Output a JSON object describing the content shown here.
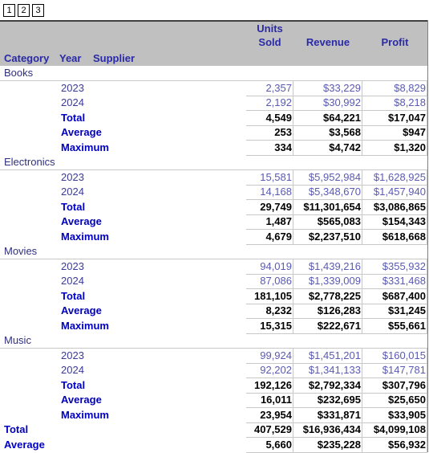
{
  "pager": {
    "buttons": [
      "1",
      "2",
      "3"
    ]
  },
  "table": {
    "header": {
      "units": [
        "Units",
        "Sold"
      ],
      "revenue": "Revenue",
      "profit": "Profit",
      "dims": [
        "Category",
        "Year",
        "Supplier"
      ]
    },
    "groups": [
      {
        "name": "Books",
        "years": [
          [
            "2023",
            "2,357",
            "$33,229",
            "$8,829"
          ],
          [
            "2024",
            "2,192",
            "$30,992",
            "$8,218"
          ]
        ],
        "summary": [
          [
            "Total",
            "4,549",
            "$64,221",
            "$17,047"
          ],
          [
            "Average",
            "253",
            "$3,568",
            "$947"
          ],
          [
            "Maximum",
            "334",
            "$4,742",
            "$1,320"
          ]
        ]
      },
      {
        "name": "Electronics",
        "years": [
          [
            "2023",
            "15,581",
            "$5,952,984",
            "$1,628,925"
          ],
          [
            "2024",
            "14,168",
            "$5,348,670",
            "$1,457,940"
          ]
        ],
        "summary": [
          [
            "Total",
            "29,749",
            "$11,301,654",
            "$3,086,865"
          ],
          [
            "Average",
            "1,487",
            "$565,083",
            "$154,343"
          ],
          [
            "Maximum",
            "4,679",
            "$2,237,510",
            "$618,668"
          ]
        ]
      },
      {
        "name": "Movies",
        "years": [
          [
            "2023",
            "94,019",
            "$1,439,216",
            "$355,932"
          ],
          [
            "2024",
            "87,086",
            "$1,339,009",
            "$331,468"
          ]
        ],
        "summary": [
          [
            "Total",
            "181,105",
            "$2,778,225",
            "$687,400"
          ],
          [
            "Average",
            "8,232",
            "$126,283",
            "$31,245"
          ],
          [
            "Maximum",
            "15,315",
            "$222,671",
            "$55,661"
          ]
        ]
      },
      {
        "name": "Music",
        "years": [
          [
            "2023",
            "99,924",
            "$1,451,201",
            "$160,015"
          ],
          [
            "2024",
            "92,202",
            "$1,341,133",
            "$147,781"
          ]
        ],
        "summary": [
          [
            "Total",
            "192,126",
            "$2,792,334",
            "$307,796"
          ],
          [
            "Average",
            "16,011",
            "$232,695",
            "$25,650"
          ],
          [
            "Maximum",
            "23,954",
            "$331,871",
            "$33,905"
          ]
        ]
      }
    ],
    "footer": [
      [
        "Total",
        "407,529",
        "$16,936,434",
        "$4,099,108"
      ],
      [
        "Average",
        "5,660",
        "$235,228",
        "$56,932"
      ]
    ]
  }
}
